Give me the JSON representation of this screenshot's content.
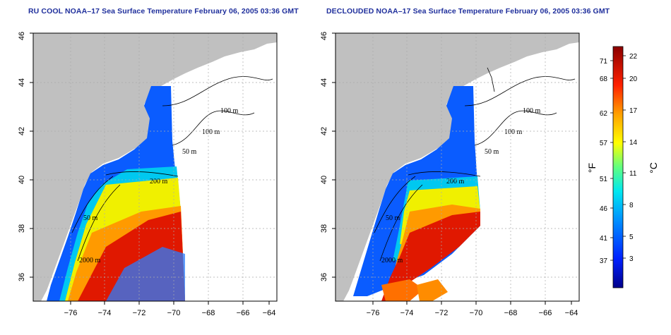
{
  "panels": [
    {
      "title": "RU COOL NOAA–17 Sea Surface Temperature February 06, 2005 03:36 GMT",
      "contour_labels": [
        "100 m",
        "100 m",
        "50 m",
        "200 m",
        "50 m",
        "2000 m"
      ]
    },
    {
      "title": "DECLOUDED NOAA–17 Sea Surface Temperature February 06, 2005 03:36 GMT",
      "contour_labels": [
        "100 m",
        "100 m",
        "50 m",
        "200 m",
        "50 m",
        "2000 m"
      ]
    }
  ],
  "axes": {
    "x_ticks": [
      "−76",
      "−74",
      "−72",
      "−70",
      "−68",
      "−66",
      "−64"
    ],
    "y_ticks": [
      "36",
      "38",
      "40",
      "42",
      "44",
      "46"
    ]
  },
  "colorbar": {
    "fahrenheit_ticks": [
      "71",
      "68",
      "62",
      "57",
      "51",
      "46",
      "41",
      "37"
    ],
    "celsius_ticks": [
      "22",
      "20",
      "17",
      "14",
      "11",
      "8",
      "5",
      "3"
    ],
    "fahrenheit_unit": "°F",
    "celsius_unit": "°C"
  },
  "colors": {
    "land": "#c0c0c0",
    "title": "#1f2f9c"
  }
}
